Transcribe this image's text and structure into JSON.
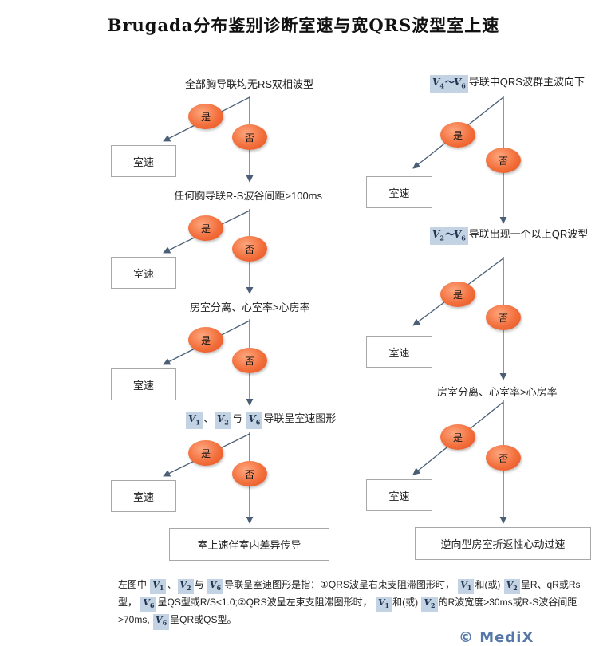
{
  "title": "Brugada分布鉴别诊断室速与宽QRS波型室上速",
  "yes": "是",
  "no": "否",
  "vt": "室速",
  "left": {
    "q1": "全部胸导联均无RS双相波型",
    "q2": "任何胸导联R-S波谷间距>100ms",
    "q3": "房室分离、心室率>心房率",
    "q4_sep": "、",
    "q4_and": "与",
    "q4_text": "导联呈室速图形",
    "end": "室上速伴室内差异传导"
  },
  "right": {
    "q1_text": "导联中QRS波群主波向下",
    "q2_text": "导联出现一个以上QR波型",
    "q3": "房室分离、心室率>心房率",
    "end": "逆向型房室折返性心动过速"
  },
  "leads": {
    "V": "V",
    "tilde": "～",
    "n1": "1",
    "n2": "2",
    "n4": "4",
    "n6": "6"
  },
  "note": {
    "p1": "左图中",
    "p2": "与",
    "p3": "导联呈室速图形是指：①QRS波呈右束支阻滞图形时，",
    "p4": "和(或)",
    "p5": "呈R、qR或Rs型，",
    "p6": "呈QS型或R/S<1.0;②QRS波呈左束支阻滞图形时，",
    "p7": "的R波宽度>30ms或R-S波谷间距>70ms,",
    "p8": "呈QR或QS型。",
    "sep": "、"
  },
  "watermark": "© MediX",
  "colors": {
    "oval": "#f26f3c",
    "line": "#4a5f75",
    "lead_bg": "#c3d3e3"
  }
}
